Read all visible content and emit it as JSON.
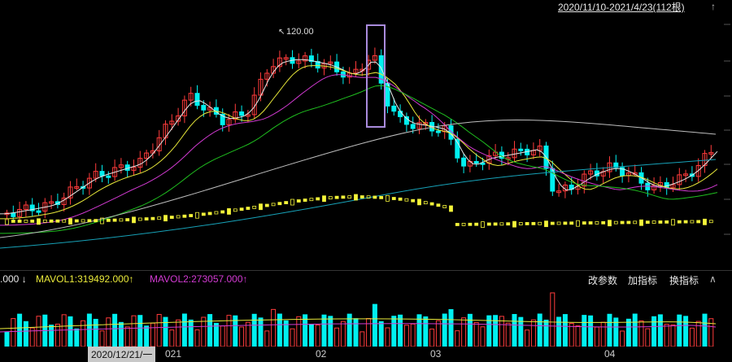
{
  "header": {
    "range_label": "2020/11/10-2021/4/23(112根)",
    "corner_icon": "↑"
  },
  "chart_data": {
    "type": "candlestick",
    "peak_annotation": "120.00",
    "colors": {
      "up": "#ff3b3b",
      "down": "#00f0f0",
      "ma5": "#e8e8e8",
      "ma10": "#e9e93a",
      "ma20": "#d23ad2",
      "ma30": "#1fbf1f",
      "ma60": "#bdbdbd",
      "ma120": "#17a2b8",
      "dots": "#f5f53a",
      "highlight": "#a98bdc"
    },
    "x_tick_labels": [
      "02",
      "03",
      "04"
    ]
  },
  "volume": {
    "mavol0_label": ".000 ↓",
    "mavol1_label": "MAVOL1:319492.000↑",
    "mavol2_label": "MAVOL2:273057.000↑",
    "buttons": [
      "改参数",
      "加指标",
      "换指标"
    ],
    "collapse_icon": "∧"
  },
  "date_axis": {
    "cursor_date": "2020/12/21/一",
    "ticks": [
      "021",
      "02",
      "03",
      "04"
    ]
  }
}
